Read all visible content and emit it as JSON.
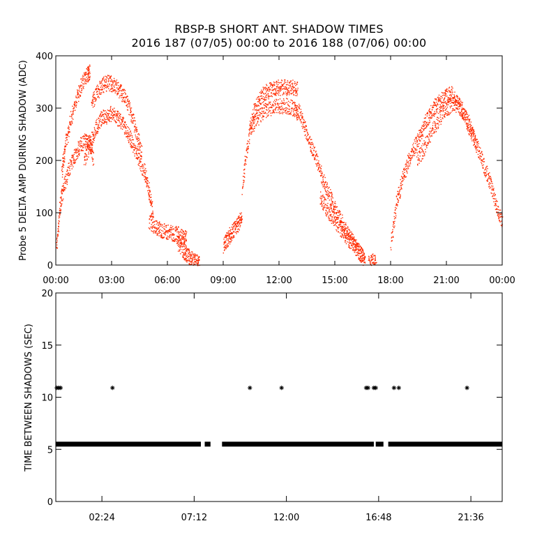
{
  "page": {
    "title": "RBSP-B SHORT ANT. SHADOW TIMES",
    "subtitle": "2016 187 (07/05) 00:00 to 2016 188 (07/06) 00:00"
  },
  "colors": {
    "trace": "#ff2a00",
    "marker": "#000000"
  },
  "chart_data": [
    {
      "type": "scatter",
      "ylabel": "Probe 5 DELTA AMP DURING SHADOW (ADC)",
      "xlabel": "",
      "xlim": [
        0,
        24
      ],
      "ylim": [
        0,
        400
      ],
      "x_units": "hours of day",
      "xticks": [
        "00:00",
        "03:00",
        "06:00",
        "09:00",
        "12:00",
        "15:00",
        "18:00",
        "21:00",
        "00:00"
      ],
      "yticks": [
        "0",
        "100",
        "200",
        "300",
        "400"
      ],
      "grid": false,
      "series": [
        {
          "color": "#ff2a00",
          "bands": [
            {
              "x": [
                0.0,
                0.2,
                0.4,
                0.7,
                1.0,
                1.3,
                1.6,
                1.8,
                2.0
              ],
              "y": [
                30,
                110,
                150,
                185,
                210,
                230,
                240,
                235,
                205
              ]
            },
            {
              "x": [
                0.3,
                0.5,
                0.8,
                1.1,
                1.4,
                1.7,
                1.8
              ],
              "y": [
                180,
                230,
                280,
                320,
                350,
                365,
                370
              ]
            },
            {
              "x": [
                1.9,
                2.2,
                2.5,
                2.8,
                3.1,
                3.4,
                3.7,
                4.0,
                4.3,
                4.6
              ],
              "y": [
                310,
                330,
                345,
                350,
                345,
                335,
                320,
                295,
                255,
                215
              ]
            },
            {
              "x": [
                1.5,
                1.8,
                2.1,
                2.4,
                2.7,
                3.0,
                3.3,
                3.6,
                3.9,
                4.2,
                4.5,
                4.8,
                5.0,
                5.2
              ],
              "y": [
                200,
                230,
                260,
                280,
                285,
                290,
                280,
                270,
                250,
                225,
                200,
                175,
                140,
                100
              ]
            },
            {
              "x": [
                5.0,
                5.3,
                5.6,
                5.9,
                6.2,
                6.5,
                6.8,
                7.0
              ],
              "y": [
                85,
                75,
                68,
                65,
                62,
                60,
                55,
                50
              ]
            },
            {
              "x": [
                6.5,
                6.8,
                7.0,
                7.2,
                7.4,
                7.6,
                7.7
              ],
              "y": [
                45,
                30,
                20,
                15,
                10,
                5,
                2
              ]
            },
            {
              "x": [
                9.0,
                9.2,
                9.4,
                9.6,
                9.8,
                10.0
              ],
              "y": [
                35,
                50,
                60,
                70,
                80,
                90
              ]
            },
            {
              "x": [
                10.0,
                10.3,
                10.6,
                10.9,
                11.2,
                11.5,
                11.8,
                12.1,
                12.4,
                12.7,
                13.0
              ],
              "y": [
                150,
                230,
                290,
                315,
                330,
                335,
                340,
                340,
                340,
                340,
                338
              ]
            },
            {
              "x": [
                10.4,
                10.8,
                11.2,
                11.6,
                12.0,
                12.4,
                12.8,
                13.0
              ],
              "y": [
                260,
                280,
                295,
                300,
                305,
                305,
                300,
                290
              ]
            },
            {
              "x": [
                13.0,
                13.3,
                13.6,
                13.9,
                14.2,
                14.5,
                14.8,
                15.1,
                15.4,
                15.7,
                16.0,
                16.3,
                16.6
              ],
              "y": [
                300,
                270,
                240,
                210,
                180,
                150,
                125,
                100,
                80,
                60,
                45,
                25,
                10
              ]
            },
            {
              "x": [
                14.2,
                14.5,
                14.8,
                15.1,
                15.4,
                15.7,
                16.0,
                16.3,
                16.6
              ],
              "y": [
                130,
                110,
                95,
                80,
                65,
                50,
                40,
                25,
                12
              ]
            },
            {
              "x": [
                16.8,
                17.0,
                17.2
              ],
              "y": [
                3,
                8,
                2
              ]
            },
            {
              "x": [
                18.0,
                18.3,
                18.6,
                18.9,
                19.2,
                19.5,
                19.8,
                20.1,
                20.4,
                20.7,
                21.0,
                21.3
              ],
              "y": [
                40,
                120,
                160,
                195,
                220,
                245,
                270,
                290,
                305,
                315,
                325,
                330
              ]
            },
            {
              "x": [
                21.3,
                21.6,
                21.9,
                22.2,
                22.5,
                22.8,
                23.1,
                23.4,
                23.7,
                24.0
              ],
              "y": [
                325,
                310,
                290,
                265,
                240,
                210,
                180,
                150,
                110,
                80
              ]
            },
            {
              "x": [
                19.4,
                19.8,
                20.2,
                20.6,
                21.0,
                21.4,
                21.8,
                22.2,
                22.6
              ],
              "y": [
                200,
                225,
                255,
                280,
                300,
                310,
                300,
                270,
                230
              ]
            }
          ]
        }
      ]
    },
    {
      "type": "scatter",
      "ylabel": "TIME BETWEEN SHADOWS (SEC)",
      "xlabel": "",
      "xlim": [
        0,
        23.23
      ],
      "ylim": [
        0,
        20
      ],
      "x_units": "hours of day",
      "xticks": [
        "02:24",
        "07:12",
        "12:00",
        "16:48",
        "21:36"
      ],
      "yticks": [
        "0",
        "5",
        "10",
        "15",
        "20"
      ],
      "marker": "asterisk",
      "grid": false,
      "series": [
        {
          "color": "#000000",
          "baseline_value": 5.5,
          "baseline_ranges": [
            [
              0.0,
              7.55
            ],
            [
              7.75,
              8.05
            ],
            [
              8.65,
              16.55
            ],
            [
              16.65,
              17.05
            ],
            [
              17.3,
              23.23
            ]
          ],
          "points": [
            {
              "x": 0.05,
              "y": 10.9
            },
            {
              "x": 0.15,
              "y": 10.9
            },
            {
              "x": 0.25,
              "y": 10.9
            },
            {
              "x": 2.95,
              "y": 10.9
            },
            {
              "x": 10.1,
              "y": 10.9
            },
            {
              "x": 11.75,
              "y": 10.9
            },
            {
              "x": 16.15,
              "y": 10.9
            },
            {
              "x": 16.25,
              "y": 10.9
            },
            {
              "x": 16.55,
              "y": 10.9
            },
            {
              "x": 16.65,
              "y": 10.9
            },
            {
              "x": 17.6,
              "y": 10.9
            },
            {
              "x": 17.85,
              "y": 10.9
            },
            {
              "x": 21.4,
              "y": 10.9
            }
          ]
        }
      ]
    }
  ]
}
